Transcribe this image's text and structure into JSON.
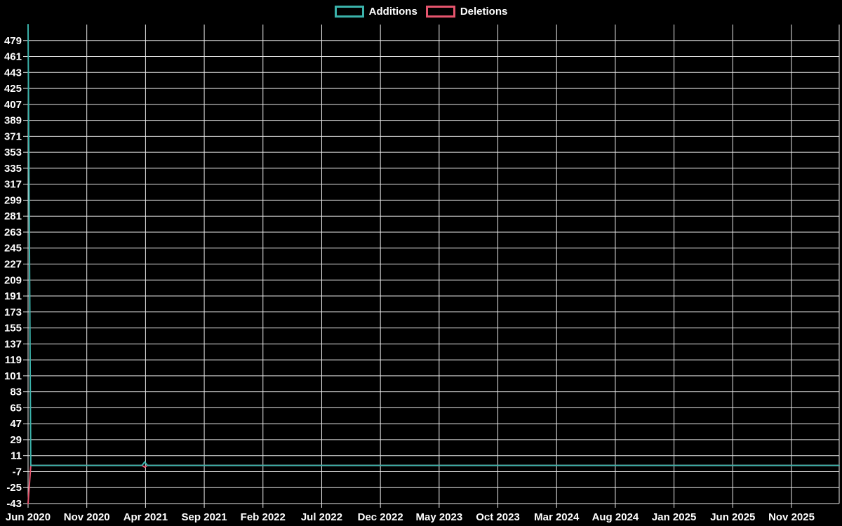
{
  "legend": {
    "items": [
      {
        "label": "Additions",
        "color": "#3bb3ab"
      },
      {
        "label": "Deletions",
        "color": "#e6556e"
      }
    ]
  },
  "chart_data": {
    "type": "line",
    "title": "",
    "xlabel": "",
    "ylabel": "",
    "legend_position": "top",
    "grid": true,
    "background": "#000000",
    "gridline_color": "#e8e8e8",
    "text_color": "#ffffff",
    "x_tick_labels": [
      "Jun 2020",
      "Nov 2020",
      "Apr 2021",
      "Sep 2021",
      "Feb 2022",
      "Jul 2022",
      "Dec 2022",
      "May 2023",
      "Oct 2023",
      "Mar 2024",
      "Aug 2024",
      "Jan 2025",
      "Jun 2025",
      "Nov 2025"
    ],
    "y_ticks": [
      479,
      461,
      443,
      425,
      407,
      389,
      371,
      353,
      335,
      317,
      299,
      281,
      263,
      245,
      227,
      209,
      191,
      173,
      155,
      137,
      119,
      101,
      83,
      65,
      47,
      29,
      11,
      -7,
      -25,
      -43
    ],
    "y_tick_step": 18,
    "ylim": [
      -43,
      497
    ],
    "x_unit": "week",
    "weeks_shown": 300,
    "baseline_value": 0,
    "series": [
      {
        "name": "Additions",
        "color": "#3bb3ab",
        "points": [
          {
            "week_index": 0,
            "x_label": "Jun 2020",
            "value": 497
          },
          {
            "week_index": 43,
            "x_label": "Apr 2021",
            "value": 4
          }
        ],
        "all_other_weeks_value": 0
      },
      {
        "name": "Deletions",
        "color": "#e6556e",
        "points": [
          {
            "week_index": 0,
            "x_label": "Jun 2020",
            "value": -43
          },
          {
            "week_index": 43,
            "x_label": "Apr 2021",
            "value": -2
          }
        ],
        "all_other_weeks_value": 0
      }
    ]
  }
}
